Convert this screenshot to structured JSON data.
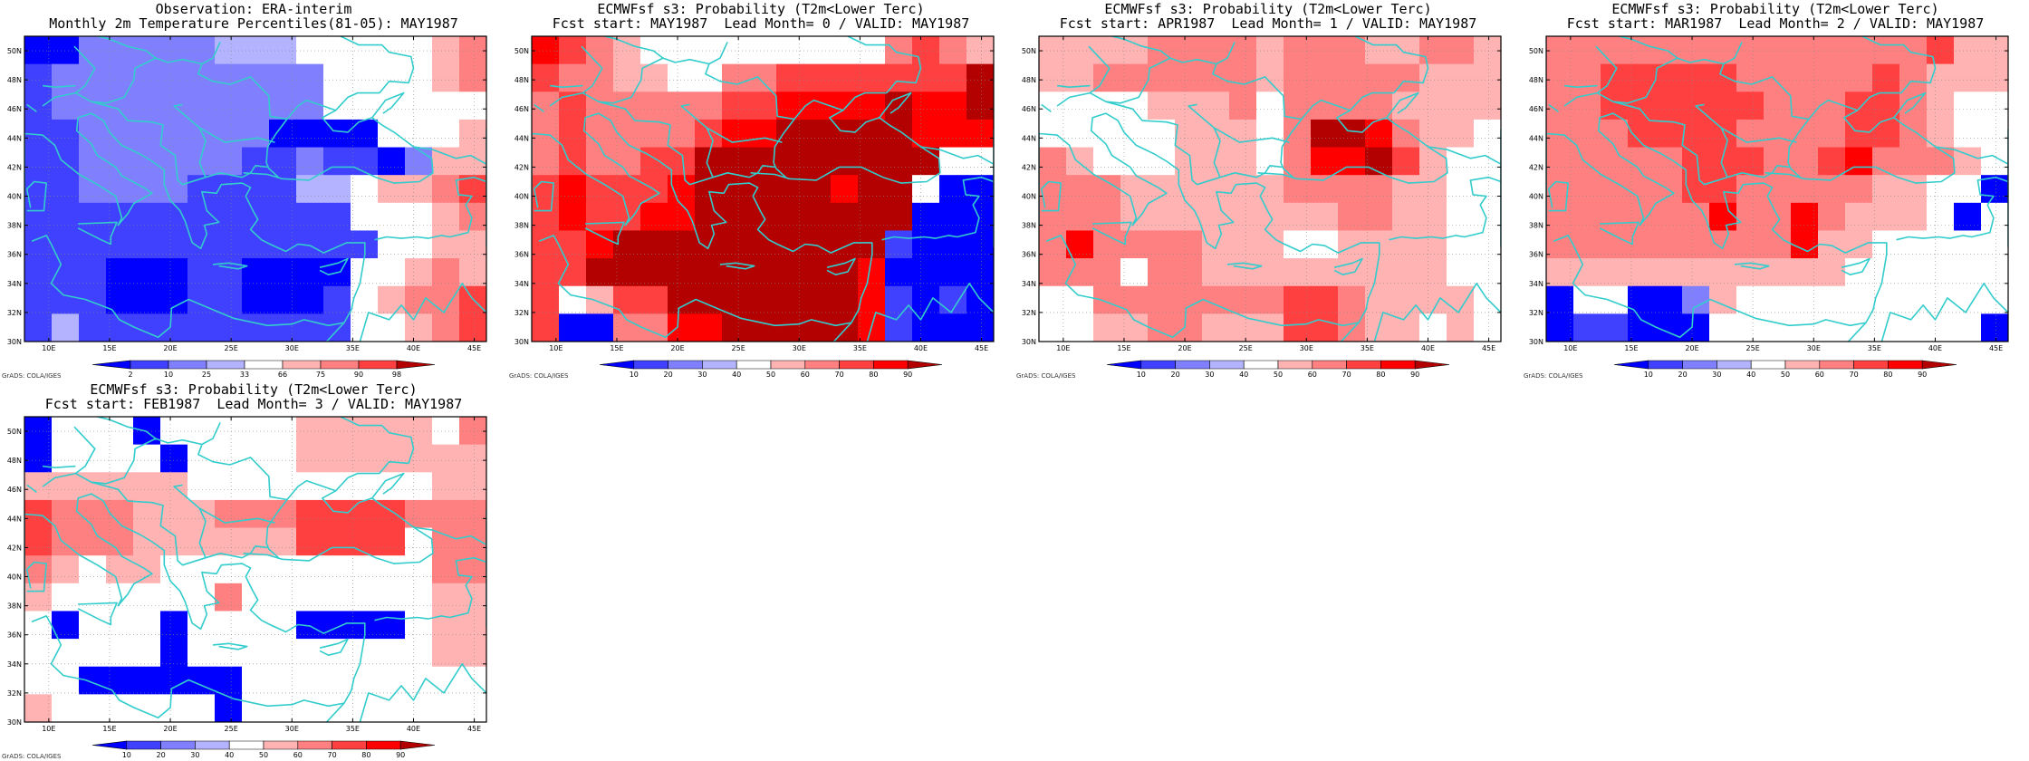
{
  "credit": "GrADS: COLA/IGES",
  "map": {
    "lon_ticks": [
      "10E",
      "15E",
      "20E",
      "25E",
      "30E",
      "35E",
      "40E",
      "45E"
    ],
    "lat_ticks": [
      "30N",
      "32N",
      "34N",
      "36N",
      "38N",
      "40N",
      "42N",
      "44N",
      "46N",
      "48N",
      "50N"
    ],
    "grid_lon_range": [
      8,
      46
    ],
    "grid_lat_range": [
      30,
      51
    ]
  },
  "colors": {
    "coast": "#33cccc",
    "levels": {
      "b4": "#0000ff",
      "b3": "#4040ff",
      "b2": "#8080ff",
      "b1": "#b3b3ff",
      "w": "#ffffff",
      "r1": "#ffb3b3",
      "r2": "#ff8080",
      "r3": "#ff4040",
      "r4": "#ff0000",
      "r5": "#b30000"
    }
  },
  "panels": [
    {
      "title1": "Observation: ERA-interim",
      "title2": "Monthly 2m Temperature Percentiles(81-05): MAY1987",
      "legend": {
        "labels": [
          "2",
          "10",
          "25",
          "33",
          "66",
          "75",
          "90",
          "98"
        ],
        "colors": [
          "b4",
          "b3",
          "b2",
          "b1",
          "w",
          "r1",
          "r2",
          "r3",
          "r5"
        ]
      },
      "grid": [
        "b4 b4 b2 b2 b2 b2 b2 b1 b1 b1 w  w  w  w  w  r1 r2",
        "b3 b2 b2 b2 b2 b2 b2 b2 b2 b2 b2 w  w  w  w  r1 r2",
        "b3 b2 b2 b2 b2 b2 b2 b2 b2 b2 b2 w  w  w  w  w  w ",
        "b3 b3 b2 b2 b2 b2 b2 b2 b2 b4 b4 b4 b4 w  w  w  r1",
        "b3 b3 b2 b2 b2 b2 b2 b2 b3 b3 b2 b3 b3 b4 b2 r1 r1",
        "b3 b3 b2 b2 b2 b2 b3 b3 b3 b3 b1 b1 w  r1 r1 r2 r3",
        "b3 b3 b3 b3 b3 b3 b3 b3 b3 b3 b3 b3 w  w  w  r1 r2",
        "b3 b3 b3 b3 b3 b3 b3 b3 b3 b3 b3 b3 b3 w  w  r1 r1",
        "b3 b3 b3 b4 b4 b4 b3 b3 b4 b4 b4 b4 w  w  r1 r2 r1",
        "b3 b3 b3 b4 b4 b4 b3 b3 b4 b4 b4 b3 w  r1 r2 r2 r3",
        "b3 b1 b3 b3 b3 b3 b3 b3 b3 b3 b3 b3 w  w  r1 r2 r3"
      ]
    },
    {
      "title1": "ECMWFsf s3: Probability (T2m<Lower Terc)",
      "title2": "Fcst start: MAY1987  Lead Month= 0 / VALID: MAY1987",
      "legend": {
        "labels": [
          "10",
          "20",
          "30",
          "40",
          "50",
          "60",
          "70",
          "80",
          "90"
        ],
        "colors": [
          "b4",
          "b3",
          "b2",
          "b1",
          "w",
          "r1",
          "r2",
          "r3",
          "r4",
          "r5"
        ]
      },
      "grid": [
        "r4 r3 r2 r1 w  w  w  w  w  w  w  w  w  r2 r3 r2 r1",
        "r3 r2 r2 r1 r1 w  w  r2 r2 r3 r3 r3 r3 r3 r3 r3 r5",
        "r2 r3 r2 r2 r2 r2 r2 r3 r3 r4 r4 r4 r4 r5 r4 r4 r5",
        "r2 r3 r2 r2 r2 r2 r3 r4 r4 r5 r5 r5 r5 r5 r4 r4 r4",
        "r2 r3 r2 r2 r3 r3 r5 r5 r5 r5 r5 r5 r5 r5 r5 w  w ",
        "r3 r4 r3 r3 r3 r4 r5 r5 r5 r5 r5 r4 r5 r5 w  b4 b4",
        "r3 r4 r3 r3 r4 r4 r5 r5 r5 r5 r5 r5 r5 r5 b4 b4 b4",
        "r3 r3 r4 r5 r5 r5 r5 r5 r5 r5 r5 r5 r5 b3 b4 b4 b4",
        "r3 r3 r5 r5 r5 r5 r5 r5 r5 r5 r5 r5 r4 b4 b4 b4 b4",
        "r3 w  r1 r3 r3 r5 r5 r5 r5 r5 r5 r5 r4 b3 b4 b3 b4",
        "r3 b4 b4 r2 r2 r4 r4 r5 r5 r5 r5 r5 r4 b3 b4 b4 b4"
      ]
    },
    {
      "title1": "ECMWFsf s3: Probability (T2m<Lower Terc)",
      "title2": "Fcst start: APR1987  Lead Month= 1 / VALID: MAY1987",
      "legend": {
        "labels": [
          "10",
          "20",
          "30",
          "40",
          "50",
          "60",
          "70",
          "80",
          "90"
        ],
        "colors": [
          "b4",
          "b3",
          "b2",
          "b1",
          "w",
          "r1",
          "r2",
          "r3",
          "r4",
          "r5"
        ]
      },
      "grid": [
        "r1 r1 r1 r1 r2 r2 r2 r2 r1 r2 r2 r2 r1 r1 r2 r2 r1",
        "r1 r1 r2 r2 r2 r2 r2 r2 r1 r2 r2 r2 r2 r2 r1 r1 r1",
        "w  w  w  w  r1 r1 r1 r2 w  r2 r2 r2 r2 r1 r1 r1 r1",
        "w  w  w  w  w  r1 r1 r1 w  r2 r5 r5 r4 r2 r1 r1 w ",
        "r2 r1 w  w  w  r1 r1 r1 w  r2 r4 r4 r5 r3 r1 w  w ",
        "r2 r2 r2 r1 r1 r1 r1 r1 r1 r2 r2 r2 r2 r1 r1 w  w ",
        "r2 r2 r2 r1 r1 r1 r1 r1 r1 r1 r1 r2 r2 r1 r1 w  w ",
        "r2 r4 r2 r2 r2 r2 r1 r1 r1 w  w  r1 r1 r1 r1 w  w ",
        "r2 r2 r2 w  r2 r2 r1 r1 r1 r1 r1 r1 r1 r1 r1 w  w ",
        "w  w  r2 r2 r2 r2 r2 r2 r2 r3 r3 r2 r1 r1 r1 r1 w ",
        "w  w  r1 r1 r2 r2 r1 r1 r1 r3 r3 r2 r1 r1 w  r1 w "
      ]
    },
    {
      "title1": "ECMWFsf s3: Probability (T2m<Lower Terc)",
      "title2": "Fcst start: MAR1987  Lead Month= 2 / VALID: MAY1987",
      "legend": {
        "labels": [
          "10",
          "20",
          "30",
          "40",
          "50",
          "60",
          "70",
          "80",
          "90"
        ],
        "colors": [
          "b4",
          "b3",
          "b2",
          "b1",
          "w",
          "r1",
          "r2",
          "r3",
          "r4",
          "r5"
        ]
      },
      "grid": [
        "r2 r2 r2 r2 r2 r2 r2 r2 r2 r2 r2 r2 r2 r2 r3 r1 r1",
        "r2 r2 r3 r3 r3 r3 r3 r2 r2 r2 r2 r2 r3 r2 r1 r1 r1",
        "r2 r2 r3 r3 r3 r3 r3 r3 r2 r2 r2 r3 r3 r2 r1 w  w ",
        "r2 r2 r2 r3 r3 r3 r3 r2 r2 r2 r2 r3 r3 r2 r1 w  w ",
        "r2 r2 r2 r2 r2 r3 r3 r3 r2 r2 r3 r4 r2 r2 r2 r1 w ",
        "r2 r2 r2 r2 r2 r3 r3 r2 r2 r2 r2 r2 r1 r1 w  w  b4",
        "r2 r2 r2 r2 r2 r2 r4 r2 r2 r4 r2 r1 r1 r1 w  b4 w ",
        "r2 r2 r2 r2 r2 r2 r2 r2 r2 r4 r1 r1 w  w  w  w  w ",
        "r1 r1 r1 r1 r1 r1 r1 r1 r1 r1 r1 w  w  w  w  w  w ",
        "b4 w  w  b4 b4 b2 r1 w  w  w  w  w  w  w  w  w  w ",
        "b4 b3 b3 b4 b4 b4 w  w  w  w  w  w  w  w  w  w  b4"
      ]
    },
    {
      "title1": "ECMWFsf s3: Probability (T2m<Lower Terc)",
      "title2": "Fcst start: FEB1987  Lead Month= 3 / VALID: MAY1987",
      "legend": {
        "labels": [
          "10",
          "20",
          "30",
          "40",
          "50",
          "60",
          "70",
          "80",
          "90"
        ],
        "colors": [
          "b4",
          "b3",
          "b2",
          "b1",
          "w",
          "r1",
          "r2",
          "r3",
          "r4",
          "r5"
        ]
      },
      "grid": [
        "b4 w  w  w  b4 w  w  w  w  w  r1 r1 r1 r1 r1 w  r2",
        "b4 w  w  w  w  b4 w  w  w  w  r1 r1 r1 r1 r1 r1 r1",
        "r1 r1 r1 r1 r1 r1 w  w  w  w  w  w  w  w  w  r1 r1",
        "r3 r2 r2 r2 r1 r1 r1 r2 r2 r2 r3 r3 r3 r3 r2 r2 r2",
        "r3 r2 r2 r2 r1 r1 r1 r1 r1 r1 r3 r3 r3 r3 w  r2 r2",
        "r2 r1 w  r1 r1 w  w  w  w  w  w  w  w  w  w  r2 r2",
        "r1 w  w  w  w  w  w  r2 w  w  w  w  w  w  w  r1 r1",
        "w  b4 w  w  w  b4 w  w  w  w  b4 b4 b4 b4 w  r1 r1",
        "w  w  w  w  w  b4 w  w  w  w  w  w  w  w  w  r1 r1",
        "w  w  b4 b4 b4 b4 b4 b4 w  w  w  w  w  w  w  w  w ",
        "r1 w  w  w  w  w  w  b4 w  w  w  w  w  w  w  w  w "
      ]
    }
  ]
}
